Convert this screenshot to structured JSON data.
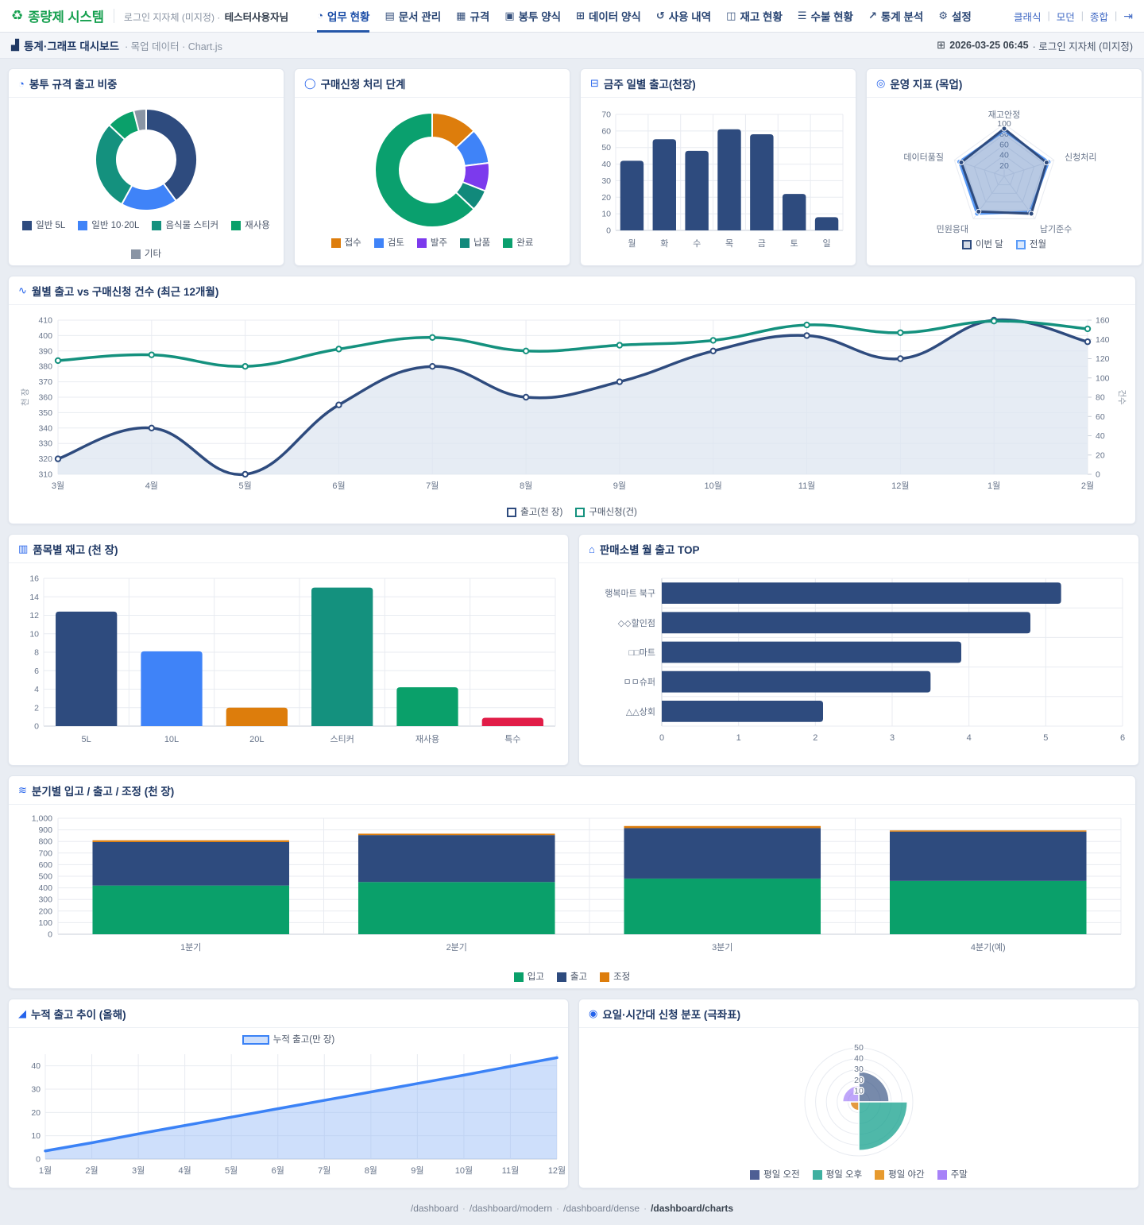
{
  "app": {
    "brand": "종량제 시스템",
    "login_prefix": "로그인 지자체 (미지정) ·",
    "user_name": "테스터사용자님",
    "nav": [
      {
        "label": "업무 현황",
        "icon": "dashboard-icon",
        "glyph": "◔",
        "active": true
      },
      {
        "label": "문서 관리",
        "icon": "document-icon",
        "glyph": "▤",
        "active": false
      },
      {
        "label": "규격",
        "icon": "spec-icon",
        "glyph": "▦",
        "active": false
      },
      {
        "label": "봉투 양식",
        "icon": "bag-icon",
        "glyph": "▣",
        "active": false
      },
      {
        "label": "데이터 양식",
        "icon": "data-table-icon",
        "glyph": "⊞",
        "active": false
      },
      {
        "label": "사용 내역",
        "icon": "history-icon",
        "glyph": "↺",
        "active": false
      },
      {
        "label": "재고 현황",
        "icon": "inventory-icon",
        "glyph": "◫",
        "active": false
      },
      {
        "label": "수불 현황",
        "icon": "ledger-icon",
        "glyph": "☰",
        "active": false
      },
      {
        "label": "통계 분석",
        "icon": "stats-icon",
        "glyph": "↗",
        "active": false
      },
      {
        "label": "설정",
        "icon": "gear-icon",
        "glyph": "⚙",
        "active": false
      }
    ],
    "view_links": [
      "클래식",
      "모던",
      "종합"
    ],
    "logout_glyph": "⇥"
  },
  "breadcrumb": {
    "title": "통계·그래프 대시보드",
    "sub": "· 목업 데이터 · Chart.js",
    "datetime": "2026-03-25 06:45",
    "org_suffix": "· 로그인 지자체 (미지정)"
  },
  "cards": [
    {
      "title": "봉투 규격 출고 비중",
      "icon": "pie-icon",
      "glyph": "◔"
    },
    {
      "title": "구매신청 처리 단계",
      "icon": "circle-icon",
      "glyph": "◯"
    },
    {
      "title": "금주 일별 출고(천장)",
      "icon": "calendar-icon",
      "glyph": "⊟"
    },
    {
      "title": "운영 지표 (목업)",
      "icon": "target-icon",
      "glyph": "◎"
    },
    {
      "title": "월별 출고 vs 구매신청 건수 (최근 12개월)",
      "icon": "line-chart-icon",
      "glyph": "∿"
    },
    {
      "title": "품목별 재고 (천 장)",
      "icon": "sitemap-icon",
      "glyph": "▥"
    },
    {
      "title": "판매소별 월 출고 TOP",
      "icon": "store-icon",
      "glyph": "⌂"
    },
    {
      "title": "분기별 입고 / 출고 / 조정 (천 장)",
      "icon": "layers-icon",
      "glyph": "≋"
    },
    {
      "title": "누적 출고 추이 (올해)",
      "icon": "area-chart-icon",
      "glyph": "◢"
    },
    {
      "title": "요일·시간대 신청 분포 (극좌표)",
      "icon": "polar-icon",
      "glyph": "◉"
    }
  ],
  "chart_data": [
    {
      "type": "doughnut",
      "title": "봉투 규격 출고 비중",
      "labels": [
        "일반 5L",
        "일반 10·20L",
        "음식물 스티커",
        "재사용",
        "기타"
      ],
      "values": [
        40,
        18,
        29,
        9,
        4
      ],
      "colors": [
        "#2e4b7e",
        "#3f83f8",
        "#14917e",
        "#0aa06a",
        "#8a95a5"
      ]
    },
    {
      "type": "doughnut",
      "title": "구매신청 처리 단계",
      "labels": [
        "접수",
        "검토",
        "발주",
        "납품",
        "완료"
      ],
      "values": [
        13,
        10,
        8,
        6,
        63
      ],
      "colors": [
        "#dd7d0c",
        "#3f83f8",
        "#7c3aed",
        "#11897b",
        "#0aa06e"
      ]
    },
    {
      "type": "bar",
      "title": "금주 일별 출고(천장)",
      "categories": [
        "월",
        "화",
        "수",
        "목",
        "금",
        "토",
        "일"
      ],
      "values": [
        42,
        55,
        48,
        61,
        58,
        22,
        8
      ],
      "color": "#2e4b7e",
      "ylim": [
        0,
        70
      ],
      "ystep": 10
    },
    {
      "type": "radar",
      "title": "운영 지표 (목업)",
      "axes": [
        "재고안정",
        "신청처리",
        "납기준수",
        "민원응대",
        "데이터품질"
      ],
      "ticks": [
        20,
        40,
        60,
        80,
        100
      ],
      "rmax": 100,
      "series": [
        {
          "name": "이번 달",
          "values": [
            91,
            85,
            88,
            83,
            86
          ],
          "color": "#2e4b7e",
          "fill": "rgba(46,75,126,0.20)"
        },
        {
          "name": "전월",
          "values": [
            87,
            89,
            84,
            88,
            90
          ],
          "color": "#5b9cf8",
          "fill": "rgba(91,156,248,0.22)"
        }
      ]
    },
    {
      "type": "line-dual",
      "title": "월별 출고 vs 구매신청 건수 (최근 12개월)",
      "categories": [
        "3월",
        "4월",
        "5월",
        "6월",
        "7월",
        "8월",
        "9월",
        "10월",
        "11월",
        "12월",
        "1월",
        "2월"
      ],
      "left_axis": {
        "label": "천 장",
        "min": 310,
        "max": 410,
        "step": 10
      },
      "right_axis": {
        "label": "건수",
        "min": 0,
        "max": 160,
        "step": 20
      },
      "series": [
        {
          "name": "출고(천 장)",
          "axis": "left",
          "color": "#2e4b7e",
          "area": "rgba(222,229,240,0.75)",
          "values": [
            320,
            340,
            310,
            355,
            380,
            360,
            370,
            390,
            400,
            385,
            410,
            396
          ]
        },
        {
          "name": "구매신청(건)",
          "axis": "right",
          "color": "#14917e",
          "area": null,
          "values": [
            118,
            124,
            112,
            130,
            142,
            128,
            134,
            139,
            155,
            147,
            159,
            151
          ]
        }
      ]
    },
    {
      "type": "bar",
      "title": "품목별 재고 (천 장)",
      "categories": [
        "5L",
        "10L",
        "20L",
        "스티커",
        "재사용",
        "특수"
      ],
      "values": [
        12.4,
        8.1,
        2.0,
        15.0,
        4.2,
        0.9
      ],
      "colors": [
        "#2e4b7e",
        "#3f83f8",
        "#dd7d0c",
        "#14917e",
        "#0aa06a",
        "#e11d48"
      ],
      "ylim": [
        0,
        16
      ],
      "ystep": 2
    },
    {
      "type": "hbar",
      "title": "판매소별 월 출고 TOP",
      "categories": [
        "행복마트 북구",
        "◇◇할인점",
        "□□마트",
        "ㅁㅁ슈퍼",
        "△△상회"
      ],
      "values": [
        5.2,
        4.8,
        3.9,
        3.5,
        2.1
      ],
      "color": "#2e4b7e",
      "xlim": [
        0,
        6
      ],
      "xstep": 1
    },
    {
      "type": "stacked-bar",
      "title": "분기별 입고 / 출고 / 조정 (천 장)",
      "categories": [
        "1분기",
        "2분기",
        "3분기",
        "4분기(예)"
      ],
      "series": [
        {
          "name": "입고",
          "color": "#0aa06a",
          "values": [
            420,
            450,
            480,
            460
          ]
        },
        {
          "name": "출고",
          "color": "#2e4b7e",
          "values": [
            375,
            405,
            435,
            425
          ]
        },
        {
          "name": "조정",
          "color": "#dd7d0c",
          "values": [
            15,
            12,
            18,
            10
          ]
        }
      ],
      "ylim": [
        0,
        1000
      ],
      "ystep": 100
    },
    {
      "type": "area",
      "title": "누적 출고 추이 (올해)",
      "categories": [
        "1월",
        "2월",
        "3월",
        "4월",
        "5월",
        "6월",
        "7월",
        "8월",
        "9월",
        "10월",
        "11월",
        "12월"
      ],
      "series": [
        {
          "name": "누적 출고(만 장)",
          "color": "#3b82f6",
          "fill": "rgba(147,183,246,0.45)",
          "values": [
            3.5,
            7,
            10.8,
            14.4,
            18,
            21.6,
            25.2,
            28.8,
            32.4,
            36,
            39.8,
            43.5
          ]
        }
      ],
      "ylim": [
        0,
        45
      ],
      "ticks": [
        0,
        10,
        20,
        30,
        40
      ]
    },
    {
      "type": "polar-area",
      "title": "요일·시간대 신청 분포 (극좌표)",
      "labels": [
        "평일 오전",
        "평일 오후",
        "평일 야간",
        "주말"
      ],
      "values": [
        28,
        45,
        8,
        15
      ],
      "colors": [
        "rgba(46,75,126,0.65)",
        "rgba(20,160,140,0.75)",
        "rgba(221,125,12,0.78)",
        "rgba(139,92,246,0.55)"
      ],
      "legend_colors": [
        "#4e5f94",
        "#3fb0a0",
        "#e79a2e",
        "#a782f8"
      ],
      "ticks": [
        10,
        20,
        30,
        40,
        50
      ],
      "rmax": 50
    }
  ],
  "footer": {
    "links": [
      "/dashboard",
      "/dashboard/modern",
      "/dashboard/dense",
      "/dashboard/charts"
    ],
    "active": "/dashboard/charts"
  }
}
